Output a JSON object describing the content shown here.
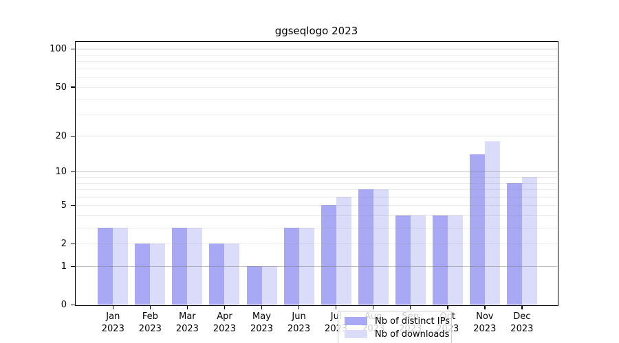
{
  "title": "ggseqlogo 2023",
  "chart_data": {
    "type": "bar",
    "title": "ggseqlogo 2023",
    "categories": [
      "Jan",
      "Feb",
      "Mar",
      "Apr",
      "May",
      "Jun",
      "Jul",
      "Aug",
      "Sep",
      "Oct",
      "Nov",
      "Dec"
    ],
    "category_year": "2023",
    "series": [
      {
        "name": "Nb of distinct IPs",
        "color": "#a8a8f4",
        "values": [
          3,
          2,
          3,
          2,
          1,
          3,
          5,
          7,
          4,
          4,
          14,
          8
        ]
      },
      {
        "name": "Nb of downloads",
        "color": "#dbdbfa",
        "values": [
          3,
          2,
          3,
          2,
          1,
          3,
          6,
          7,
          4,
          4,
          18,
          9
        ]
      }
    ],
    "xlabel": "",
    "ylabel": "",
    "yscale": "log1p",
    "ylim": [
      0,
      114
    ],
    "yticks": [
      0,
      1,
      2,
      5,
      10,
      20,
      50,
      100
    ],
    "grid_major": [
      1,
      10,
      100
    ],
    "grid_minor": [
      2,
      3,
      4,
      5,
      6,
      7,
      8,
      9,
      20,
      30,
      40,
      50,
      60,
      70,
      80,
      90
    ],
    "grid": "on",
    "legend_position": "lower center, inside plot",
    "colors": {
      "axis": "#000000",
      "grid_major": "#c3c3c3",
      "grid_minor": "#ebebeb",
      "background": "#ffffff"
    }
  }
}
